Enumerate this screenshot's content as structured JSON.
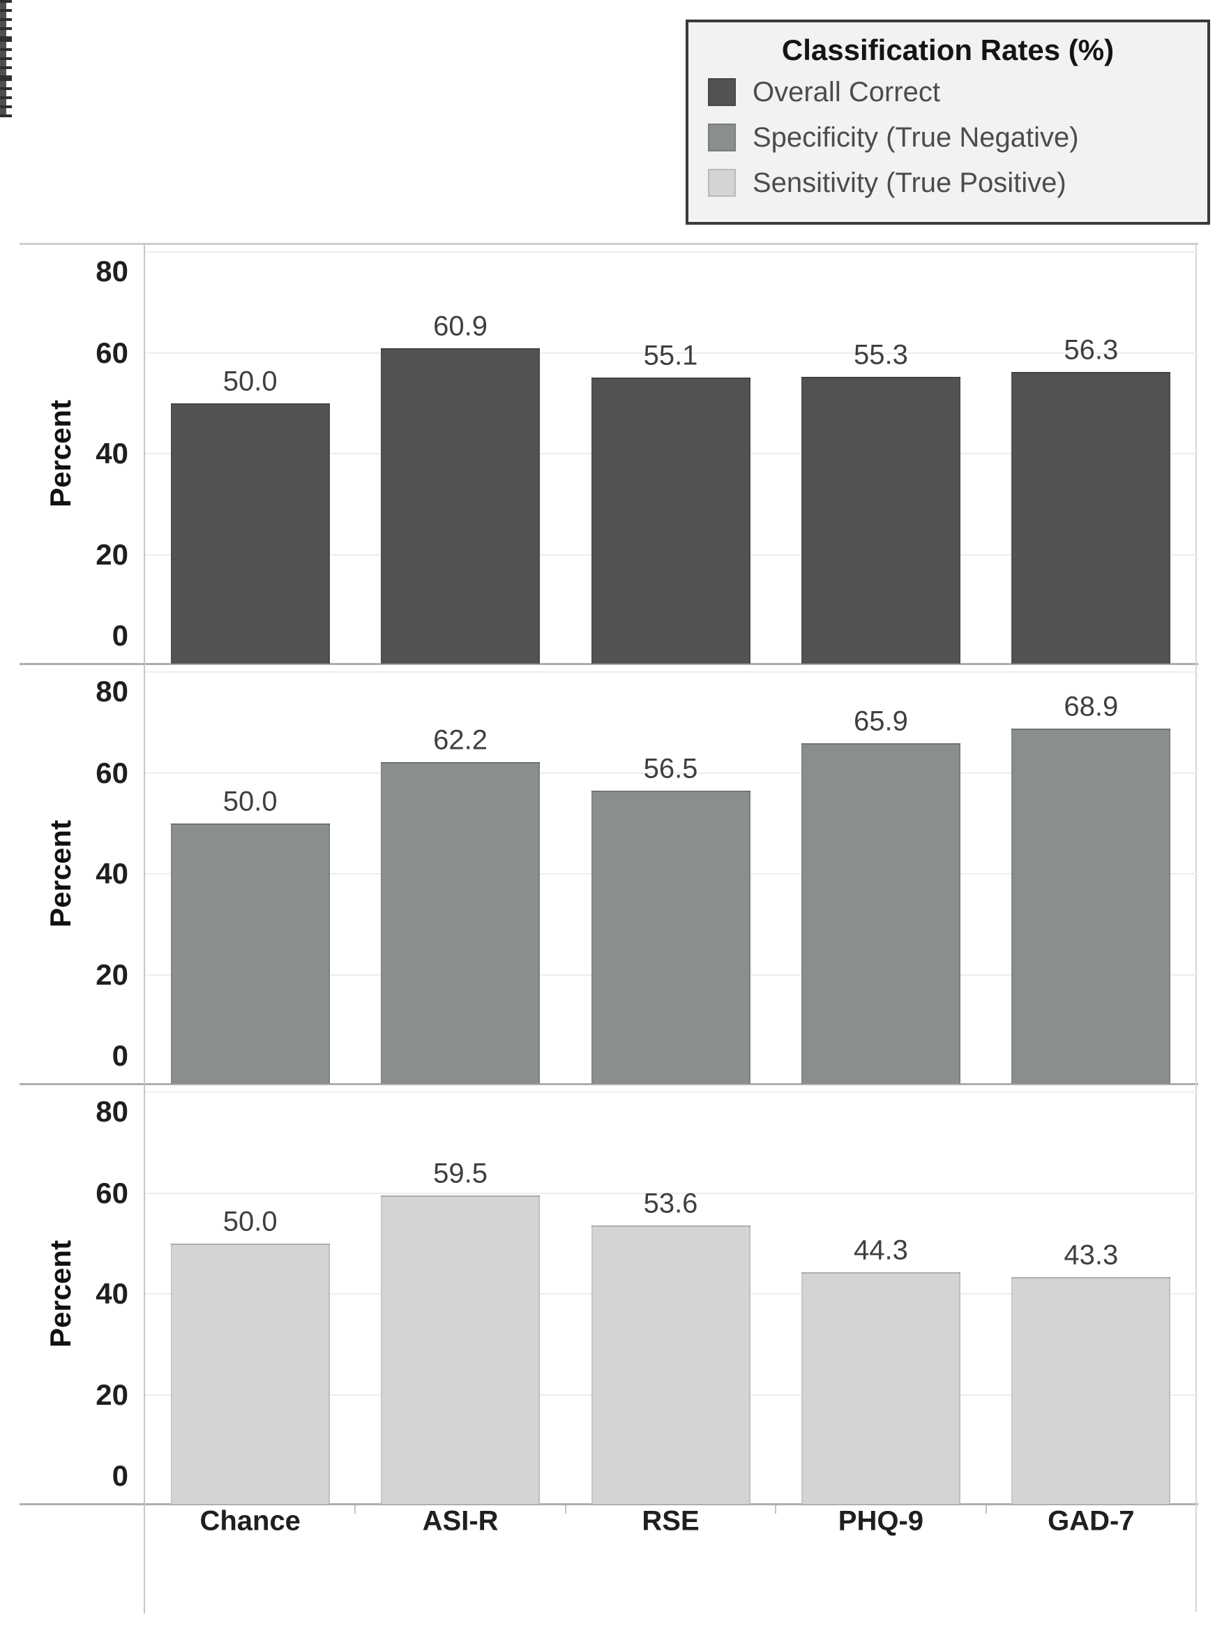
{
  "page": {
    "background": "#ffffff"
  },
  "legend": {
    "title": "Classification Rates (%)",
    "items": [
      {
        "label": "Overall Correct",
        "color": "#525252"
      },
      {
        "label": "Specificity (True Negative)",
        "color": "#8a8e8e"
      },
      {
        "label": "Sensitivity (True Positive)",
        "color": "#d4d4d5"
      }
    ]
  },
  "chart_data": {
    "type": "bar",
    "categories": [
      "Chance",
      "ASI-R",
      "RSE",
      "PHQ-9",
      "GAD-7"
    ],
    "series": [
      {
        "name": "Overall Correct",
        "color": "#525252",
        "values": [
          50.0,
          60.9,
          55.1,
          55.3,
          56.3
        ]
      },
      {
        "name": "Specificity (True Negative)",
        "color": "#8a8e8e",
        "values": [
          50.0,
          62.2,
          56.5,
          65.9,
          68.9
        ]
      },
      {
        "name": "Sensitivity (True Positive)",
        "color": "#d4d4d5",
        "values": [
          50.0,
          59.5,
          53.6,
          44.3,
          43.3
        ]
      }
    ],
    "title": "Classification Rates (%)",
    "xlabel": "",
    "ylabel": "Percent",
    "yticks": [
      0,
      20,
      40,
      60,
      80
    ],
    "ytick_minor_step": 5,
    "ylim": [
      0,
      82
    ],
    "grid": true,
    "legend_position": "top-right",
    "value_labels": true,
    "value_label_format": "one-decimal"
  }
}
